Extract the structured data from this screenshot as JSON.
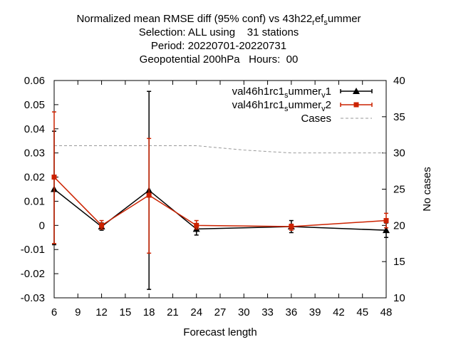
{
  "chart_data": {
    "type": "line",
    "title_lines": [
      "Normalized mean RMSE diff (95% conf) vs 43h22_ref_summer",
      "Selection: ALL using    31 stations",
      "Period: 20220701-20220731",
      "Geopotential 200hPa   Hours:  00"
    ],
    "xlabel": "Forecast length",
    "ylabel_left": "",
    "ylabel_right": "No cases",
    "xlim": [
      6,
      48
    ],
    "ylim_left": [
      -0.03,
      0.06
    ],
    "ylim_right": [
      10,
      40
    ],
    "x_ticks": [
      "6",
      "9",
      "12",
      "15",
      "18",
      "21",
      "24",
      "27",
      "30",
      "33",
      "36",
      "39",
      "42",
      "45",
      "48"
    ],
    "y_ticks_left": [
      "-0.03",
      "-0.02",
      "-0.01",
      "0",
      "0.01",
      "0.02",
      "0.03",
      "0.04",
      "0.05",
      "0.06"
    ],
    "y_ticks_right": [
      "10",
      "15",
      "20",
      "25",
      "30",
      "35",
      "40"
    ],
    "grid": false,
    "legend_position": "top-right",
    "series": [
      {
        "name": "val46h1rc1_summer_v1",
        "color": "#000000",
        "marker": "triangle",
        "axis": "left",
        "x": [
          6,
          12,
          18,
          24,
          36,
          48
        ],
        "y": [
          0.015,
          -0.0005,
          0.0145,
          -0.0015,
          -0.0005,
          -0.002
        ],
        "err_low": [
          -0.008,
          -0.002,
          -0.0265,
          -0.004,
          -0.003,
          -0.005
        ],
        "err_high": [
          0.039,
          0.001,
          0.0555,
          0.0005,
          0.002,
          0.001
        ]
      },
      {
        "name": "val46h1rc1_summer_v2",
        "color": "#cc2200",
        "marker": "square",
        "axis": "left",
        "x": [
          6,
          12,
          18,
          24,
          36,
          48
        ],
        "y": [
          0.02,
          0.0,
          0.0125,
          0.0,
          -0.0005,
          0.002
        ],
        "err_low": [
          -0.0075,
          -0.0015,
          -0.0115,
          -0.0015,
          -0.002,
          -0.001
        ],
        "err_high": [
          0.047,
          0.002,
          0.036,
          0.002,
          0.0005,
          0.005
        ]
      },
      {
        "name": "Cases",
        "color": "#999999",
        "style": "dashed",
        "axis": "right",
        "x": [
          6,
          12,
          18,
          24,
          30,
          36,
          42,
          48
        ],
        "y": [
          31,
          31,
          31,
          31,
          30.4,
          30,
          30,
          30
        ]
      }
    ]
  }
}
